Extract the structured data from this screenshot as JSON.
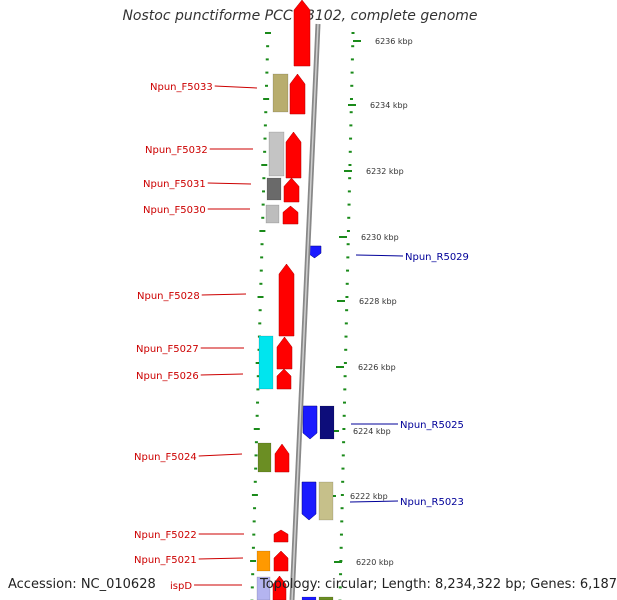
{
  "title": "Nostoc punctiforme PCC 73102, complete genome",
  "footer": {
    "accession": "Accession: NC_010628",
    "summary": "Topology: circular; Length: 8,234,322 bp; Genes: 6,187"
  },
  "colors": {
    "forward_gene": "#ff0000",
    "reverse_gene": "#1a1aff",
    "forward_label": "#cc0000",
    "reverse_label": "#000099",
    "tick": "#1a8a1a",
    "backbone": "#888888"
  },
  "ticks": [
    {
      "label": "6236 kbp"
    },
    {
      "label": "6234 kbp"
    },
    {
      "label": "6232 kbp"
    },
    {
      "label": "6230 kbp"
    },
    {
      "label": "6228 kbp"
    },
    {
      "label": "6226 kbp"
    },
    {
      "label": "6224 kbp"
    },
    {
      "label": "6222 kbp"
    },
    {
      "label": "6220 kbp"
    }
  ],
  "forward_labels": [
    {
      "label": "Npun_F5033"
    },
    {
      "label": "Npun_F5032"
    },
    {
      "label": "Npun_F5031"
    },
    {
      "label": "Npun_F5030"
    },
    {
      "label": "Npun_F5028"
    },
    {
      "label": "Npun_F5027"
    },
    {
      "label": "Npun_F5026"
    },
    {
      "label": "Npun_F5024"
    },
    {
      "label": "Npun_F5022"
    },
    {
      "label": "Npun_F5021"
    },
    {
      "label": "ispD"
    }
  ],
  "reverse_labels": [
    {
      "label": "Npun_R5029"
    },
    {
      "label": "Npun_R5025"
    },
    {
      "label": "Npun_R5023"
    }
  ]
}
